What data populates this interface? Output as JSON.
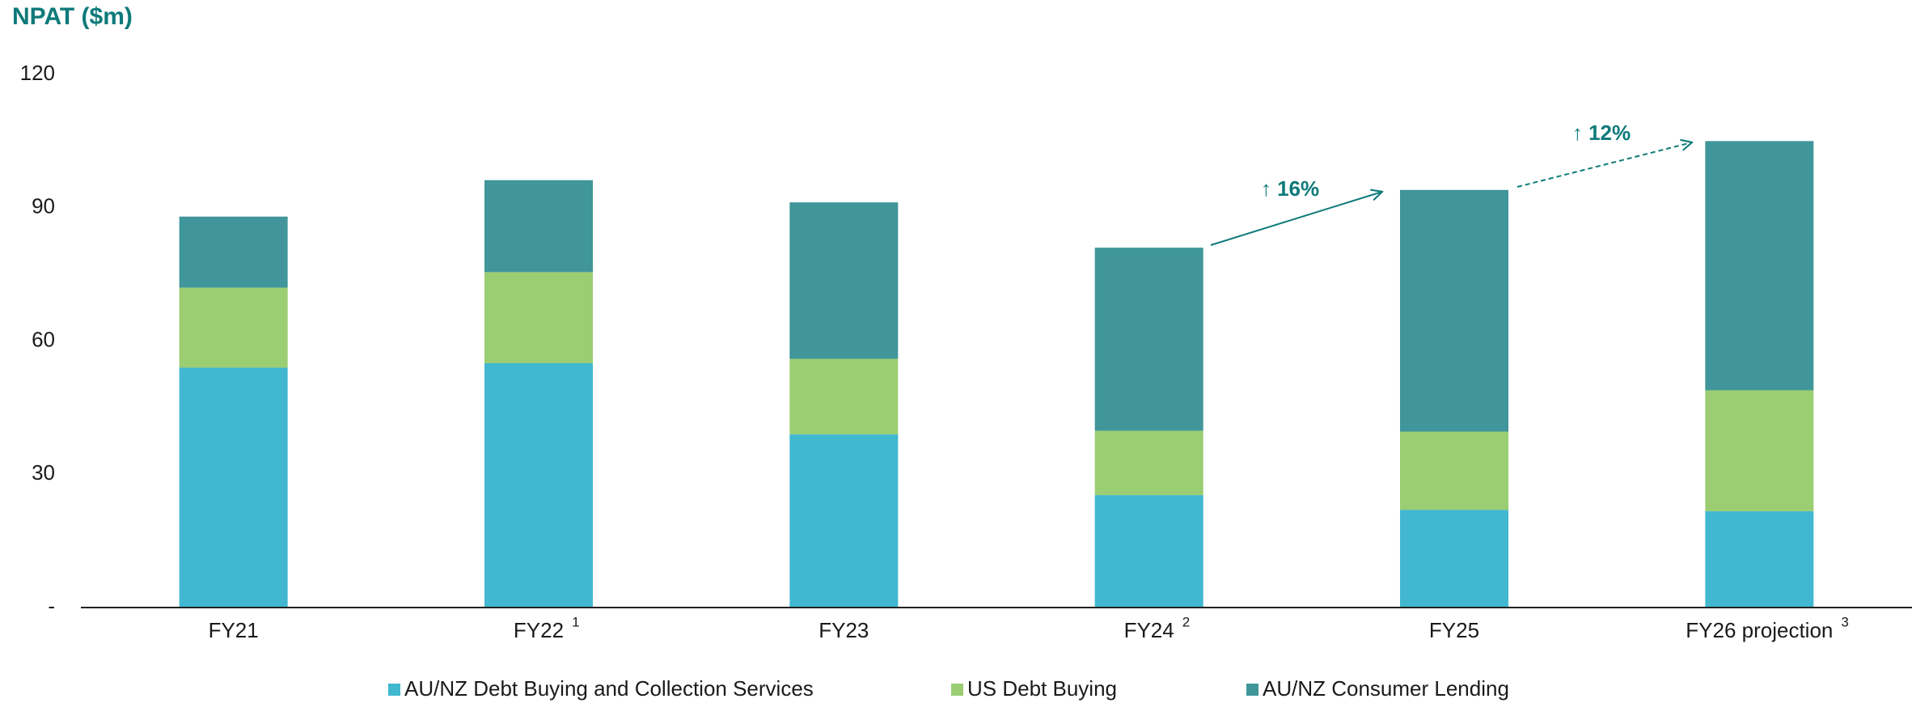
{
  "chart_data": {
    "type": "stacked_bar",
    "title": "NPAT ($m)",
    "categories": [
      "FY21",
      "FY22",
      "FY23",
      "FY24",
      "FY25",
      "FY26 projection"
    ],
    "category_notes": [
      null,
      "1",
      null,
      "2",
      null,
      "3"
    ],
    "series": [
      {
        "name": "AU/NZ Debt Buying and Collection Services",
        "color": "#41b8d0",
        "values": [
          54,
          55,
          39,
          25.3,
          22,
          21.7
        ]
      },
      {
        "name": "US Debt Buying",
        "color": "#9bcd72",
        "values": [
          18,
          20.5,
          17,
          14.5,
          17.6,
          27.2
        ]
      },
      {
        "name": "AU/NZ Consumer Lending",
        "color": "#40969a",
        "values": [
          16,
          20.7,
          35.2,
          41.2,
          54.4,
          56.1
        ]
      }
    ],
    "ylim": [
      0,
      120
    ],
    "yticks": [
      {
        "value": 0,
        "label": "-"
      },
      30,
      60,
      90,
      120
    ],
    "annotations": [
      {
        "text": "↑ 16%"
      },
      {
        "text": "↑ 12%"
      }
    ]
  }
}
